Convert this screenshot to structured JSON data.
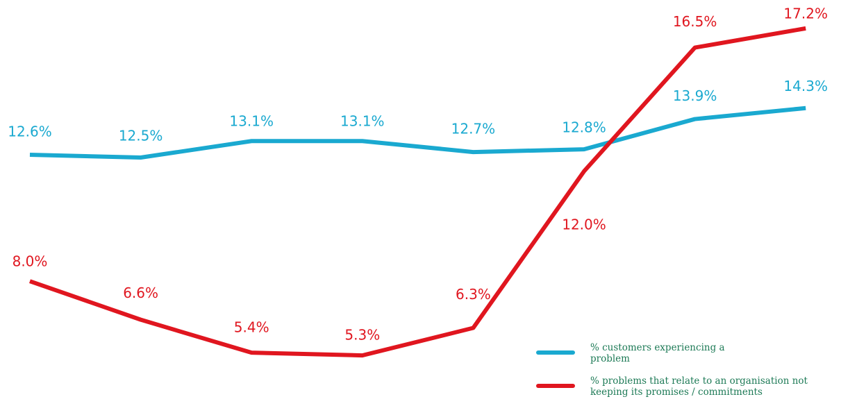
{
  "chart_data": {
    "type": "line",
    "categories": [
      null,
      null,
      null,
      null,
      null,
      null,
      null,
      null
    ],
    "series": [
      {
        "name": "% customers experiencing a problem",
        "color": "#1aa9d0",
        "values": [
          12.6,
          12.5,
          13.1,
          13.1,
          12.7,
          12.8,
          13.9,
          14.3
        ],
        "value_labels": [
          "12.6%",
          "12.5%",
          "13.1%",
          "13.1%",
          "12.7%",
          "12.8%",
          "13.9%",
          "14.3%"
        ]
      },
      {
        "name": "% problems that relate to an organisation not keeping its promises / commitments",
        "color": "#e0161f",
        "values": [
          8.0,
          6.6,
          5.4,
          5.3,
          6.3,
          12.0,
          16.5,
          17.2
        ],
        "value_labels": [
          "8.0%",
          "6.6%",
          "5.4%",
          "5.3%",
          "6.3%",
          "12.0%",
          "16.5%",
          "17.2%"
        ]
      }
    ],
    "ylim": [
      5,
      17.5
    ]
  }
}
